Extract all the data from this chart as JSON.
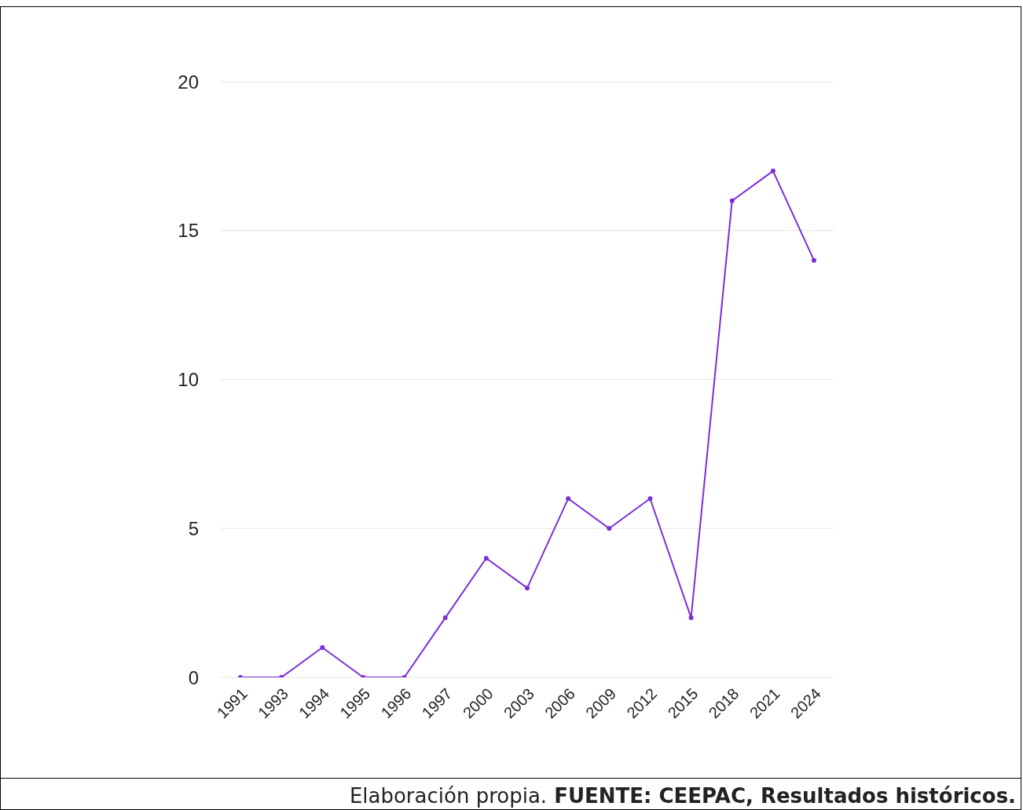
{
  "chart_data": {
    "type": "line",
    "categories": [
      "1991",
      "1993",
      "1994",
      "1995",
      "1996",
      "1997",
      "2000",
      "2003",
      "2006",
      "2009",
      "2012",
      "2015",
      "2018",
      "2021",
      "2024"
    ],
    "series": [
      {
        "color": "#7b2fd6",
        "values": [
          0,
          0,
          1,
          0,
          0,
          2,
          4,
          3,
          6,
          5,
          6,
          2,
          16,
          17,
          14
        ]
      }
    ],
    "ylim": [
      0,
      20
    ],
    "yticks": [
      0,
      5,
      10,
      15,
      20
    ],
    "grid": "y",
    "legend": false,
    "marker": "circle",
    "line_style": "solid",
    "annotations": [
      "Elaboración propia.",
      "FUENTE: CEEPAC, Resultados históricos."
    ]
  }
}
